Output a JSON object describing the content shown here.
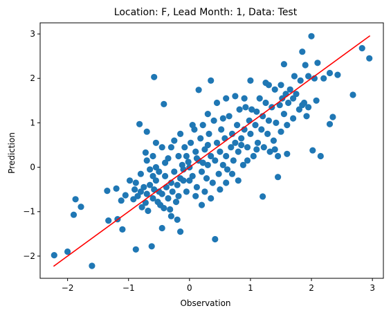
{
  "chart_data": {
    "type": "scatter",
    "title": "Location: F, Lead Month: 1, Data: Test",
    "xlabel": "Observation",
    "ylabel": "Prediction",
    "xlim": [
      -2.45,
      3.18
    ],
    "ylim": [
      -2.5,
      3.25
    ],
    "xticks": [
      -2,
      -1,
      0,
      1,
      2,
      3
    ],
    "yticks": [
      -2,
      -1,
      0,
      1,
      2,
      3
    ],
    "grid": false,
    "colors": {
      "points": "#1f77b4",
      "fit_line": "#ff0000",
      "axes": "#000000"
    },
    "fit_line": {
      "x": [
        -2.23,
        2.96
      ],
      "y": [
        -2.23,
        2.96
      ]
    },
    "points": [
      [
        -2.22,
        -1.98
      ],
      [
        -2.0,
        -1.9
      ],
      [
        -1.9,
        -1.07
      ],
      [
        -1.87,
        -0.72
      ],
      [
        -1.78,
        -0.89
      ],
      [
        -1.6,
        -2.22
      ],
      [
        -1.35,
        -0.53
      ],
      [
        -1.33,
        -1.2
      ],
      [
        -1.18,
        -1.17
      ],
      [
        -1.2,
        -0.48
      ],
      [
        -1.12,
        -0.75
      ],
      [
        -1.05,
        -0.63
      ],
      [
        -1.1,
        -1.4
      ],
      [
        -0.98,
        -0.3
      ],
      [
        -0.88,
        -1.85
      ],
      [
        -0.82,
        0.97
      ],
      [
        -0.9,
        -0.5
      ],
      [
        -0.85,
        -0.65
      ],
      [
        -0.8,
        -0.55
      ],
      [
        -0.75,
        -0.45
      ],
      [
        -0.72,
        -0.8
      ],
      [
        -0.7,
        -0.6
      ],
      [
        -0.65,
        -0.4
      ],
      [
        -0.6,
        -0.7
      ],
      [
        -0.58,
        -0.5
      ],
      [
        -0.55,
        -0.3
      ],
      [
        -0.5,
        -0.55
      ],
      [
        -0.48,
        -0.85
      ],
      [
        -0.45,
        -0.6
      ],
      [
        -0.4,
        -0.2
      ],
      [
        -0.38,
        -0.45
      ],
      [
        -0.35,
        -0.7
      ],
      [
        -0.3,
        -0.35
      ],
      [
        -0.28,
        -0.55
      ],
      [
        -0.25,
        -0.1
      ],
      [
        -0.2,
        -0.4
      ],
      [
        -0.18,
        -0.65
      ],
      [
        -0.15,
        -0.25
      ],
      [
        -0.12,
        0.05
      ],
      [
        -0.1,
        -0.3
      ],
      [
        -0.72,
        0.33
      ],
      [
        -0.7,
        0.15
      ],
      [
        -0.65,
        -0.05
      ],
      [
        -0.6,
        -0.2
      ],
      [
        -0.55,
        0.0
      ],
      [
        -0.5,
        -0.1
      ],
      [
        -0.6,
        0.25
      ],
      [
        -0.45,
        0.45
      ],
      [
        -0.4,
        0.1
      ],
      [
        -0.35,
        0.2
      ],
      [
        -0.62,
        -1.78
      ],
      [
        -0.58,
        2.03
      ],
      [
        -0.45,
        -1.37
      ],
      [
        -0.42,
        1.42
      ],
      [
        -0.8,
        -0.15
      ],
      [
        -0.88,
        -0.35
      ],
      [
        -0.92,
        -0.72
      ],
      [
        -0.78,
        -0.9
      ],
      [
        -0.68,
        -0.98
      ],
      [
        -0.52,
        -0.78
      ],
      [
        -0.42,
        -0.92
      ],
      [
        -0.32,
        -0.95
      ],
      [
        -0.22,
        -0.78
      ],
      [
        -0.2,
        -1.18
      ],
      [
        -0.15,
        -1.45
      ],
      [
        -0.1,
        -0.05
      ],
      [
        -0.08,
        0.45
      ],
      [
        -0.05,
        0.25
      ],
      [
        0.0,
        0.0
      ],
      [
        0.02,
        0.55
      ],
      [
        0.05,
        -0.2
      ],
      [
        0.08,
        0.85
      ],
      [
        0.1,
        0.35
      ],
      [
        0.12,
        -0.45
      ],
      [
        0.15,
        0.15
      ],
      [
        0.18,
        0.65
      ],
      [
        0.2,
        -0.1
      ],
      [
        0.22,
        0.95
      ],
      [
        0.25,
        0.4
      ],
      [
        0.28,
        -0.25
      ],
      [
        0.3,
        0.05
      ],
      [
        0.32,
        0.75
      ],
      [
        0.35,
        0.25
      ],
      [
        0.38,
        -0.35
      ],
      [
        0.4,
        1.05
      ],
      [
        0.42,
        0.15
      ],
      [
        0.45,
        0.55
      ],
      [
        0.48,
        -0.15
      ],
      [
        0.5,
        0.35
      ],
      [
        0.52,
        0.85
      ],
      [
        0.55,
        0.05
      ],
      [
        0.58,
        0.65
      ],
      [
        0.6,
        0.25
      ],
      [
        0.62,
        -0.05
      ],
      [
        0.65,
        1.15
      ],
      [
        0.68,
        0.45
      ],
      [
        0.7,
        0.75
      ],
      [
        0.72,
        0.15
      ],
      [
        0.75,
        0.55
      ],
      [
        0.78,
        0.95
      ],
      [
        0.8,
        0.35
      ],
      [
        0.82,
        1.3
      ],
      [
        0.85,
        0.65
      ],
      [
        0.88,
        0.05
      ],
      [
        0.9,
        0.85
      ],
      [
        0.92,
        1.35
      ],
      [
        0.95,
        0.45
      ],
      [
        0.98,
        1.05
      ],
      [
        1.0,
        0.75
      ],
      [
        1.02,
        1.3
      ],
      [
        1.05,
        0.25
      ],
      [
        1.08,
        0.95
      ],
      [
        1.1,
        1.25
      ],
      [
        1.12,
        0.55
      ],
      [
        1.15,
        1.55
      ],
      [
        1.18,
        0.85
      ],
      [
        1.2,
        1.15
      ],
      [
        1.22,
        0.45
      ],
      [
        1.25,
        1.45
      ],
      [
        1.28,
        0.75
      ],
      [
        1.3,
        1.05
      ],
      [
        1.32,
        0.35
      ],
      [
        1.35,
        1.35
      ],
      [
        1.38,
        0.6
      ],
      [
        1.4,
        1.75
      ],
      [
        1.42,
        1.0
      ],
      [
        1.45,
        0.25
      ],
      [
        1.48,
        1.4
      ],
      [
        1.5,
        0.8
      ],
      [
        1.52,
        1.55
      ],
      [
        1.55,
        1.2
      ],
      [
        1.58,
        1.65
      ],
      [
        1.6,
        0.95
      ],
      [
        1.62,
        1.45
      ],
      [
        1.65,
        1.75
      ],
      [
        1.7,
        1.1
      ],
      [
        1.72,
        2.05
      ],
      [
        1.75,
        1.65
      ],
      [
        1.8,
        1.3
      ],
      [
        1.82,
        1.95
      ],
      [
        1.85,
        2.6
      ],
      [
        1.88,
        1.45
      ],
      [
        1.9,
        2.3
      ],
      [
        1.92,
        1.15
      ],
      [
        1.95,
        2.05
      ],
      [
        2.0,
        2.95
      ],
      [
        2.02,
        0.38
      ],
      [
        2.05,
        2.0
      ],
      [
        2.08,
        1.5
      ],
      [
        2.1,
        2.35
      ],
      [
        2.15,
        0.25
      ],
      [
        2.2,
        2.0
      ],
      [
        2.3,
        0.97
      ],
      [
        2.35,
        1.13
      ],
      [
        2.3,
        2.12
      ],
      [
        2.43,
        2.08
      ],
      [
        2.68,
        1.63
      ],
      [
        2.83,
        2.68
      ],
      [
        2.95,
        2.45
      ],
      [
        1.2,
        -0.66
      ],
      [
        1.45,
        -0.22
      ],
      [
        0.42,
        -1.62
      ],
      [
        -0.3,
        -1.1
      ],
      [
        0.1,
        -0.65
      ],
      [
        0.2,
        -0.85
      ],
      [
        0.35,
        -0.7
      ],
      [
        0.5,
        -0.5
      ],
      [
        0.6,
        -0.35
      ],
      [
        0.7,
        -0.15
      ],
      [
        0.8,
        -0.3
      ],
      [
        0.15,
        1.74
      ],
      [
        0.35,
        1.95
      ],
      [
        0.55,
        1.1
      ],
      [
        0.75,
        1.6
      ],
      [
        1.3,
        1.85
      ],
      [
        1.55,
        2.32
      ],
      [
        0.45,
        1.45
      ],
      [
        0.6,
        1.55
      ],
      [
        0.9,
        1.55
      ],
      [
        1.0,
        1.95
      ],
      [
        -0.25,
        0.6
      ],
      [
        -0.15,
        0.75
      ],
      [
        -0.3,
        0.45
      ],
      [
        -0.55,
        0.55
      ],
      [
        -0.7,
        0.8
      ],
      [
        0.05,
        0.95
      ],
      [
        0.3,
        1.2
      ],
      [
        0.25,
        -0.55
      ],
      [
        -0.05,
        -0.55
      ],
      [
        0.0,
        -0.3
      ],
      [
        0.12,
        0.2
      ],
      [
        0.22,
        0.1
      ],
      [
        -0.02,
        0.12
      ],
      [
        -0.18,
        0.25
      ],
      [
        0.3,
        0.5
      ],
      [
        1.4,
        0.4
      ],
      [
        1.6,
        0.3
      ],
      [
        1.1,
        0.4
      ],
      [
        0.95,
        0.15
      ],
      [
        0.85,
        0.5
      ],
      [
        1.7,
        1.55
      ],
      [
        1.85,
        1.4
      ],
      [
        1.95,
        1.35
      ],
      [
        1.5,
        1.85
      ],
      [
        1.25,
        1.9
      ]
    ]
  }
}
